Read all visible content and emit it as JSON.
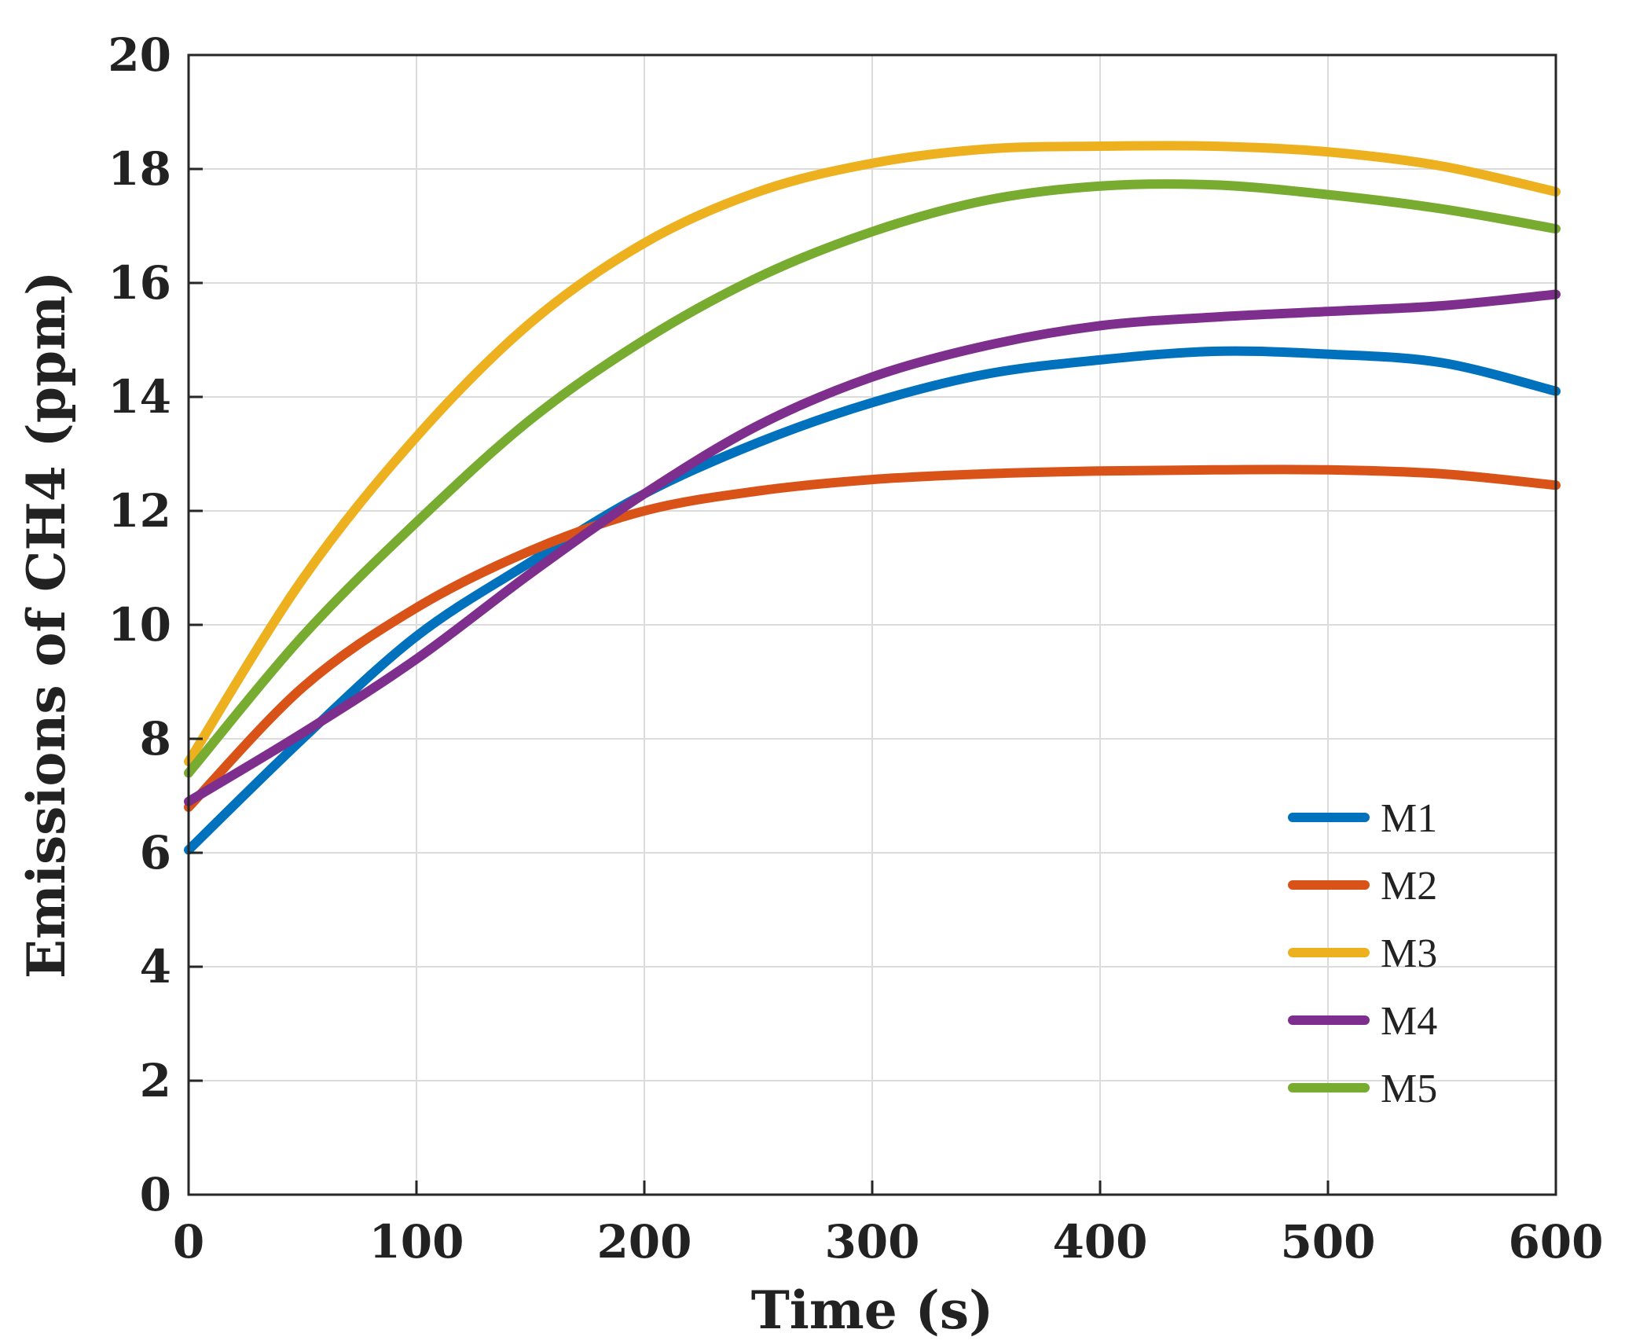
{
  "chart_data": {
    "type": "line",
    "title": "",
    "xlabel": "Time (s)",
    "ylabel": "Emissions of CH4 (ppm)",
    "xlim": [
      0,
      600
    ],
    "ylim": [
      0,
      20
    ],
    "xticks": [
      0,
      100,
      200,
      300,
      400,
      500,
      600
    ],
    "yticks": [
      0,
      2,
      4,
      6,
      8,
      10,
      12,
      14,
      16,
      18,
      20
    ],
    "grid": true,
    "legend_position": "bottom-right",
    "x": [
      0,
      50,
      100,
      150,
      200,
      250,
      300,
      350,
      400,
      450,
      500,
      550,
      600
    ],
    "series": [
      {
        "name": "M1",
        "color": "#0072BD",
        "values": [
          6.05,
          8.0,
          9.8,
          11.1,
          12.3,
          13.2,
          13.9,
          14.4,
          14.65,
          14.8,
          14.75,
          14.6,
          14.1
        ]
      },
      {
        "name": "M2",
        "color": "#D95319",
        "values": [
          6.8,
          8.9,
          10.3,
          11.3,
          12.0,
          12.35,
          12.55,
          12.65,
          12.7,
          12.72,
          12.72,
          12.65,
          12.45
        ]
      },
      {
        "name": "M3",
        "color": "#EDB120",
        "values": [
          7.6,
          10.8,
          13.3,
          15.3,
          16.7,
          17.6,
          18.1,
          18.35,
          18.4,
          18.4,
          18.3,
          18.05,
          17.6
        ]
      },
      {
        "name": "M4",
        "color": "#7E2F8E",
        "values": [
          6.9,
          8.1,
          9.4,
          10.9,
          12.3,
          13.5,
          14.35,
          14.9,
          15.25,
          15.4,
          15.5,
          15.6,
          15.8
        ]
      },
      {
        "name": "M5",
        "color": "#77AC30",
        "values": [
          7.4,
          9.8,
          11.8,
          13.6,
          15.0,
          16.1,
          16.9,
          17.45,
          17.7,
          17.72,
          17.55,
          17.3,
          16.95
        ]
      }
    ]
  }
}
